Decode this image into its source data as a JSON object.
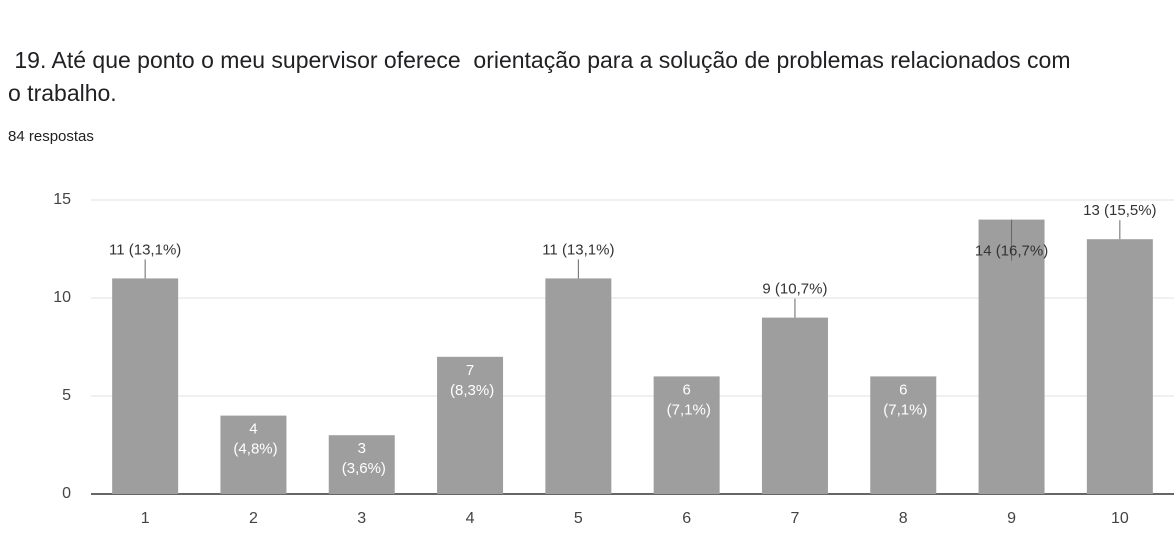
{
  "chart_data": {
    "type": "bar",
    "title": " 19. Até que ponto o meu supervisor oferece  orientação para a solução de problemas relacionados com o trabalho.",
    "subtitle": "84 respostas",
    "categories": [
      "1",
      "2",
      "3",
      "4",
      "5",
      "6",
      "7",
      "8",
      "9",
      "10"
    ],
    "values": [
      11,
      4,
      3,
      7,
      11,
      6,
      9,
      6,
      14,
      13
    ],
    "value_labels": [
      "11 (13,1%)",
      "4 (4,8%)",
      "3 (3,6%)",
      "7 (8,3%)",
      "11 (13,1%)",
      "6 (7,1%)",
      "9 (10,7%)",
      "6 (7,1%)",
      "14 (16,7%)",
      "13 (15,5%)"
    ],
    "color": "#9e9e9e",
    "ylim": [
      0,
      15
    ],
    "yticks": [
      0,
      5,
      10,
      15
    ],
    "grid": true
  }
}
